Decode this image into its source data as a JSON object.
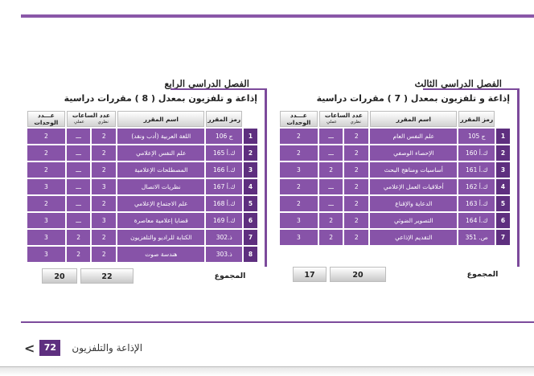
{
  "semester3": {
    "title": "الفصل الدراسي الثالث",
    "subtitle": "إذاعة و تلفزيون بمعدل ( 7 ) مقررات دراسية",
    "headers": {
      "code": "رمز المقرر",
      "name": "اسم المقرر",
      "hours": "عدد الساعات",
      "theory": "نظري",
      "practical": "عملي",
      "units": "عـــدد الوحدات"
    },
    "rows": [
      {
        "num": "1",
        "code": "ج 105",
        "name": "علم النفس العام",
        "theory": "2",
        "practical": "ـــ",
        "units": "2"
      },
      {
        "num": "2",
        "code": "ك.أ 160",
        "name": "الإحصاء الوصفي",
        "theory": "2",
        "practical": "ـــ",
        "units": "2"
      },
      {
        "num": "3",
        "code": "ك.أ 161",
        "name": "أساسيات ومناهج البحث",
        "theory": "2",
        "practical": "2",
        "units": "3"
      },
      {
        "num": "4",
        "code": "ك.أ 162",
        "name": "أخلاقيات العمل الإعلامي",
        "theory": "2",
        "practical": "ـــ",
        "units": "2"
      },
      {
        "num": "5",
        "code": "ك.أ 163",
        "name": "الدعاية والإقناع",
        "theory": "2",
        "practical": "ـــ",
        "units": "2"
      },
      {
        "num": "6",
        "code": "ك.أ 164",
        "name": "التصوير الضوئي",
        "theory": "2",
        "practical": "2",
        "units": "3"
      },
      {
        "num": "7",
        "code": "ص. 351",
        "name": "التقديم الإذاعي",
        "theory": "2",
        "practical": "2",
        "units": "3"
      }
    ],
    "total_label": "المجموع",
    "total_hours": "20",
    "total_units": "17"
  },
  "semester4": {
    "title": "الفصل الدراسي الرابع",
    "subtitle": "إذاعة و تلفزيون بمعدل ( 8 ) مقررات دراسية",
    "headers": {
      "code": "رمز المقرر",
      "name": "اسم المقرر",
      "hours": "عدد الساعات",
      "theory": "نظري",
      "practical": "عملي",
      "units": "عـــدد الوحدات"
    },
    "rows": [
      {
        "num": "1",
        "code": "ج 106",
        "name": "اللغة العربية (أدب ونقد)",
        "theory": "2",
        "practical": "ـــ",
        "units": "2"
      },
      {
        "num": "2",
        "code": "ك.أ 165",
        "name": "علم النفس الإعلامي",
        "theory": "2",
        "practical": "ـــ",
        "units": "2"
      },
      {
        "num": "3",
        "code": "ك.أ 166",
        "name": "المصطلحات الإعلامية",
        "theory": "2",
        "practical": "ـــ",
        "units": "2"
      },
      {
        "num": "4",
        "code": "ك.أ 167",
        "name": "نظريات الاتصال",
        "theory": "3",
        "practical": "ـــ",
        "units": "3"
      },
      {
        "num": "5",
        "code": "ك.أ 168",
        "name": "علم الاجتماع الإعلامي",
        "theory": "2",
        "practical": "ـــ",
        "units": "2"
      },
      {
        "num": "6",
        "code": "ك.أ 169",
        "name": "قضايا إعلامية معاصرة",
        "theory": "3",
        "practical": "ـــ",
        "units": "3"
      },
      {
        "num": "7",
        "code": "ذ.302",
        "name": "الكتابة للراديو والتلفزيون",
        "theory": "2",
        "practical": "2",
        "units": "3"
      },
      {
        "num": "8",
        "code": "ذ.303",
        "name": "هندسة صوت",
        "theory": "2",
        "practical": "2",
        "units": "3"
      }
    ],
    "total_label": "المجموع",
    "total_hours": "22",
    "total_units": "20"
  },
  "footer": {
    "page_number": "72",
    "brand": "الإذاعة والتلفزيون",
    "chevron": "<"
  },
  "colors": {
    "accent": "#7c4a9b",
    "row_fill": "#8753a8",
    "number_fill": "#5e2f7f"
  }
}
